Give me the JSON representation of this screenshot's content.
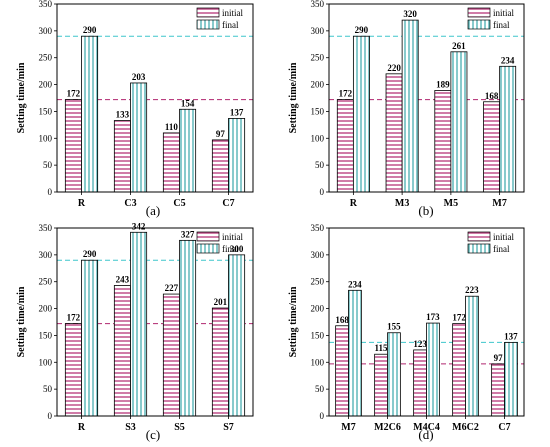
{
  "chart_data": [
    {
      "type": "bar",
      "panel_label": "(a)",
      "categories": [
        "R",
        "C3",
        "C5",
        "C7"
      ],
      "series": [
        {
          "name": "initial",
          "values": [
            172,
            133,
            110,
            97
          ]
        },
        {
          "name": "final",
          "values": [
            290,
            203,
            154,
            137
          ]
        }
      ],
      "xlabel": "",
      "ylabel": "Setting time/min",
      "ylim": [
        0,
        350
      ],
      "yticks": [
        "0",
        "50",
        "100",
        "150",
        "200",
        "250",
        "300",
        "350"
      ],
      "reference_lines": [
        172,
        290
      ],
      "legend": "top-right",
      "grid": false
    },
    {
      "type": "bar",
      "panel_label": "(b)",
      "categories": [
        "R",
        "M3",
        "M5",
        "M7"
      ],
      "series": [
        {
          "name": "initial",
          "values": [
            172,
            220,
            189,
            168
          ]
        },
        {
          "name": "final",
          "values": [
            290,
            320,
            261,
            234
          ]
        }
      ],
      "xlabel": "",
      "ylabel": "Setting time/min",
      "ylim": [
        0,
        350
      ],
      "yticks": [
        "0",
        "50",
        "100",
        "150",
        "200",
        "250",
        "300",
        "350"
      ],
      "reference_lines": [
        172,
        290
      ],
      "legend": "top-right",
      "grid": false
    },
    {
      "type": "bar",
      "panel_label": "(c)",
      "categories": [
        "R",
        "S3",
        "S5",
        "S7"
      ],
      "series": [
        {
          "name": "initial",
          "values": [
            172,
            243,
            227,
            201
          ]
        },
        {
          "name": "final",
          "values": [
            290,
            342,
            327,
            300
          ]
        }
      ],
      "xlabel": "",
      "ylabel": "Setting time/min",
      "ylim": [
        0,
        350
      ],
      "yticks": [
        "0",
        "50",
        "100",
        "150",
        "200",
        "250",
        "300",
        "350"
      ],
      "reference_lines": [
        172,
        290
      ],
      "legend": "top-right",
      "grid": false
    },
    {
      "type": "bar",
      "panel_label": "(d)",
      "categories": [
        "M7",
        "M2C6",
        "M4C4",
        "M6C2",
        "C7"
      ],
      "series": [
        {
          "name": "initial",
          "values": [
            168,
            115,
            123,
            172,
            97
          ]
        },
        {
          "name": "final",
          "values": [
            234,
            155,
            173,
            223,
            137
          ]
        }
      ],
      "xlabel": "",
      "ylabel": "Setting time/min",
      "ylim": [
        0,
        350
      ],
      "yticks": [
        "0",
        "50",
        "100",
        "150",
        "200",
        "250",
        "300",
        "350"
      ],
      "reference_lines": [
        97,
        137
      ],
      "legend": "top-right",
      "grid": false
    }
  ],
  "colors": {
    "initial": "#b0266f",
    "final": "#3aa8aa",
    "ref_initial": "#b0266f",
    "ref_final": "#3fc6cc"
  }
}
